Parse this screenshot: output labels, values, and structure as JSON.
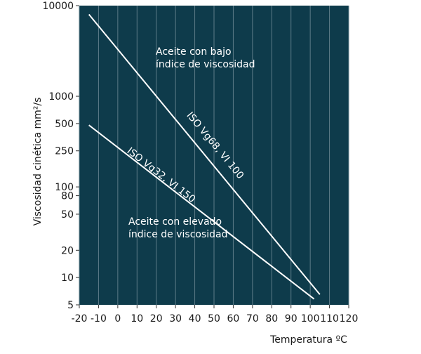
{
  "chart_data": {
    "type": "line",
    "x_label": "Temperatura ºC",
    "y_label": "Viscosidad cinética mm²/s",
    "xlim": [
      -20,
      120
    ],
    "xticks": [
      -20,
      -10,
      0,
      10,
      20,
      30,
      40,
      50,
      60,
      70,
      80,
      90,
      100,
      110,
      120
    ],
    "ylim": [
      5,
      10000
    ],
    "yticks": [
      5,
      10,
      20,
      50,
      80,
      100,
      250,
      500,
      1000,
      10000
    ],
    "log_y": true,
    "grid": true,
    "series": [
      {
        "name": "ISO Vg68, VI 100",
        "color": "#ffffff",
        "x": [
          -15,
          105
        ],
        "values": [
          8000,
          6.5
        ]
      },
      {
        "name": "ISO Vg32, VI 150",
        "color": "#ffffff",
        "x": [
          -15,
          102
        ],
        "values": [
          480,
          5.8
        ]
      }
    ],
    "annotations": [
      [
        "Aceite con bajo",
        "índice de viscosidad"
      ],
      [
        "Aceite con elevado",
        "índice de viscosidad"
      ]
    ]
  }
}
